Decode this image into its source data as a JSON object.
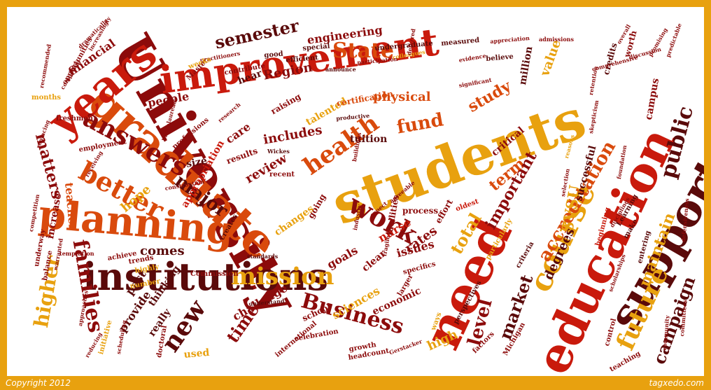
{
  "footer": {
    "copyright": "Copyright 2012",
    "brand": "tagxedo.com"
  },
  "colors": {
    "frame": "#e8a10f",
    "background": "#ffffff",
    "palette": [
      "#e8a10f",
      "#d94a0c",
      "#c91a0c",
      "#8c0b0b",
      "#5a0a0a",
      "#f2b23a"
    ]
  },
  "words": [
    {
      "text": "University"
    },
    {
      "text": "students"
    },
    {
      "text": "graduate"
    },
    {
      "text": "institutions"
    },
    {
      "text": "need"
    },
    {
      "text": "education"
    },
    {
      "text": "improvement"
    },
    {
      "text": "planning"
    },
    {
      "text": "years"
    },
    {
      "text": "support"
    },
    {
      "text": "course"
    },
    {
      "text": "work"
    },
    {
      "text": "better"
    },
    {
      "text": "answers"
    },
    {
      "text": "families"
    },
    {
      "text": "mission"
    },
    {
      "text": "Business"
    },
    {
      "text": "health"
    },
    {
      "text": "future"
    },
    {
      "text": "accreditation"
    },
    {
      "text": "public"
    },
    {
      "text": "State"
    },
    {
      "text": "new"
    },
    {
      "text": "major"
    },
    {
      "text": "semester"
    },
    {
      "text": "level"
    },
    {
      "text": "market"
    },
    {
      "text": "campaign"
    },
    {
      "text": "higher"
    },
    {
      "text": "matters"
    },
    {
      "text": "time"
    },
    {
      "text": "fund"
    },
    {
      "text": "study"
    },
    {
      "text": "total"
    },
    {
      "text": "term"
    },
    {
      "text": "important"
    },
    {
      "text": "SVSU"
    },
    {
      "text": "maintain"
    },
    {
      "text": "value"
    },
    {
      "text": "degrees"
    },
    {
      "text": "includes"
    },
    {
      "text": "physical"
    },
    {
      "text": "care"
    },
    {
      "text": "review"
    },
    {
      "text": "rates"
    },
    {
      "text": "nurse"
    },
    {
      "text": "hope"
    },
    {
      "text": "teacher"
    },
    {
      "text": "appropriation"
    },
    {
      "text": "engineering"
    },
    {
      "text": "Region"
    },
    {
      "text": "hear"
    },
    {
      "text": "financial"
    },
    {
      "text": "people"
    },
    {
      "text": "economic"
    },
    {
      "text": "sciences"
    },
    {
      "text": "challenge"
    },
    {
      "text": "high"
    },
    {
      "text": "goals"
    },
    {
      "text": "comes"
    },
    {
      "text": "provide"
    },
    {
      "text": "really"
    },
    {
      "text": "past"
    },
    {
      "text": "thinking"
    },
    {
      "text": "issues"
    },
    {
      "text": "clear"
    },
    {
      "text": "talented"
    },
    {
      "text": "raising"
    },
    {
      "text": "tuition"
    },
    {
      "text": "million"
    },
    {
      "text": "successful"
    },
    {
      "text": "size"
    },
    {
      "text": "used"
    },
    {
      "text": "increase"
    },
    {
      "text": "critical"
    },
    {
      "text": "school"
    },
    {
      "text": "campus"
    },
    {
      "text": "certification"
    },
    {
      "text": "process"
    },
    {
      "text": "effort"
    },
    {
      "text": "facilities"
    },
    {
      "text": "changes"
    },
    {
      "text": "going"
    },
    {
      "text": "results"
    },
    {
      "text": "credits"
    },
    {
      "text": "worth"
    },
    {
      "text": "special"
    },
    {
      "text": "efficient"
    },
    {
      "text": "good"
    },
    {
      "text": "measured"
    },
    {
      "text": "believe"
    },
    {
      "text": "undergraduate"
    },
    {
      "text": "colleagues"
    },
    {
      "text": "contribute"
    },
    {
      "text": "practitioners"
    },
    {
      "text": "Master"
    },
    {
      "text": "weeks"
    },
    {
      "text": "opportunities"
    },
    {
      "text": "competing"
    },
    {
      "text": "employment"
    },
    {
      "text": "professions"
    },
    {
      "text": "recent"
    },
    {
      "text": "oldest"
    },
    {
      "text": "particularly"
    },
    {
      "text": "criteria"
    },
    {
      "text": "beginning"
    },
    {
      "text": "entering"
    },
    {
      "text": "control"
    },
    {
      "text": "teaching"
    },
    {
      "text": "Michigan"
    },
    {
      "text": "factors"
    },
    {
      "text": "growth"
    },
    {
      "text": "celebration"
    },
    {
      "text": "headcount"
    },
    {
      "text": "international"
    },
    {
      "text": "understand"
    },
    {
      "text": "doctoral"
    },
    {
      "text": "initiative"
    },
    {
      "text": "trends"
    },
    {
      "text": "achieve"
    },
    {
      "text": "highly"
    },
    {
      "text": "Commission"
    },
    {
      "text": "standards"
    },
    {
      "text": "creates"
    },
    {
      "text": "perspectives"
    },
    {
      "text": "ways"
    },
    {
      "text": "larger"
    },
    {
      "text": "specifics"
    },
    {
      "text": "months"
    },
    {
      "text": "freshmen"
    },
    {
      "text": "dramatically"
    },
    {
      "text": "increasingly"
    },
    {
      "text": "recommended"
    },
    {
      "text": "evidence"
    },
    {
      "text": "significant"
    },
    {
      "text": "announce"
    },
    {
      "text": "participation"
    },
    {
      "text": "productive"
    },
    {
      "text": "research"
    },
    {
      "text": "admissions"
    },
    {
      "text": "appreciation"
    },
    {
      "text": "comprehensive"
    },
    {
      "text": "overall"
    },
    {
      "text": "discussion"
    },
    {
      "text": "promising"
    },
    {
      "text": "predictable"
    },
    {
      "text": "selection"
    },
    {
      "text": "Learning"
    },
    {
      "text": "make"
    },
    {
      "text": "reasons"
    },
    {
      "text": "agreeable"
    },
    {
      "text": "expect"
    },
    {
      "text": "fragile"
    },
    {
      "text": "buildings"
    },
    {
      "text": "balance"
    },
    {
      "text": "underway"
    },
    {
      "text": "competition"
    },
    {
      "text": "approaches"
    },
    {
      "text": "reducing"
    },
    {
      "text": "scheduling"
    },
    {
      "text": "number"
    },
    {
      "text": "community"
    },
    {
      "text": "committees"
    },
    {
      "text": "baccalaureate"
    },
    {
      "text": "construction"
    },
    {
      "text": "receiving"
    },
    {
      "text": "warranted"
    },
    {
      "text": "temptation"
    },
    {
      "text": "replacing"
    },
    {
      "text": "Wickes"
    },
    {
      "text": "deferred"
    },
    {
      "text": "industry"
    },
    {
      "text": "Gerstacker"
    },
    {
      "text": "defensiveness"
    },
    {
      "text": "skepticism"
    },
    {
      "text": "foundation"
    },
    {
      "text": "scholarships"
    },
    {
      "text": "retention"
    },
    {
      "text": "disciplines"
    }
  ]
}
